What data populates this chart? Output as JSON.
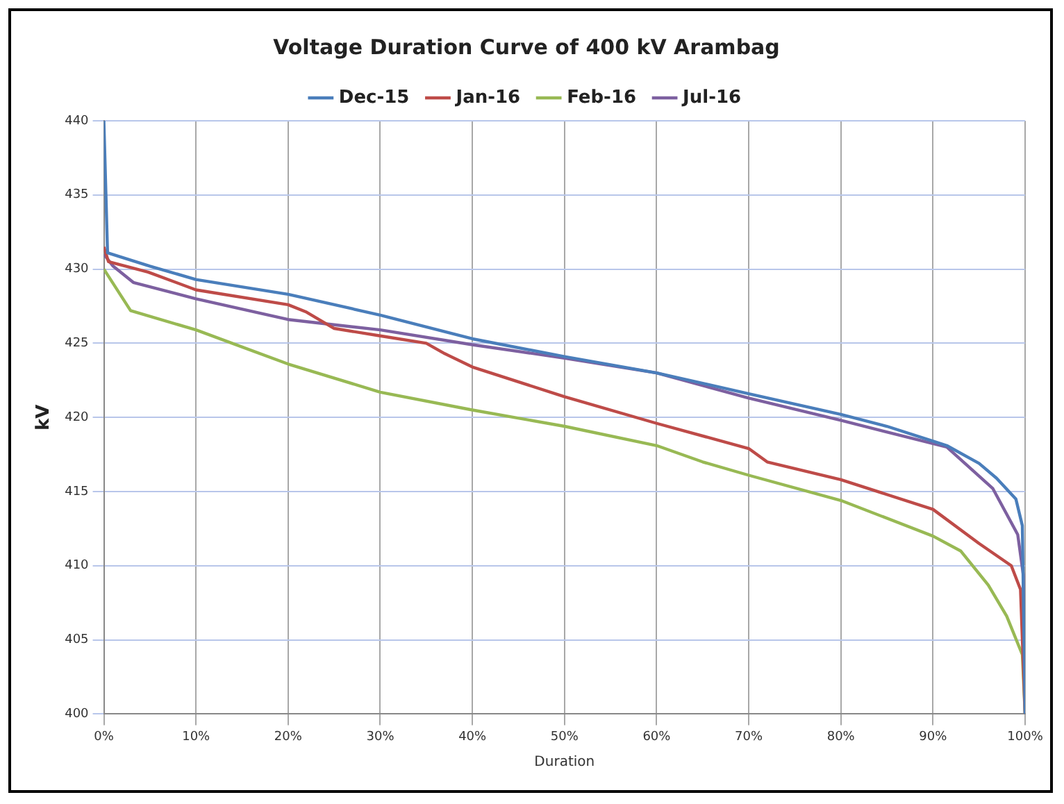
{
  "chart_data": {
    "type": "line",
    "title": "Voltage Duration Curve of 400 kV Arambag",
    "xlabel": "Duration",
    "ylabel": "kV",
    "xlim": [
      0,
      100
    ],
    "xticks": [
      {
        "value": 0,
        "label": "0%"
      },
      {
        "value": 10,
        "label": "10%"
      },
      {
        "value": 20,
        "label": "20%"
      },
      {
        "value": 30,
        "label": "30%"
      },
      {
        "value": 40,
        "label": "40%"
      },
      {
        "value": 50,
        "label": "50%"
      },
      {
        "value": 60,
        "label": "60%"
      },
      {
        "value": 70,
        "label": "70%"
      },
      {
        "value": 80,
        "label": "80%"
      },
      {
        "value": 90,
        "label": "90%"
      },
      {
        "value": 100,
        "label": "100%"
      }
    ],
    "ylim": [
      400,
      440
    ],
    "yticks": [
      400,
      405,
      410,
      415,
      420,
      425,
      430,
      435,
      440
    ],
    "grid": true,
    "legend": "top",
    "marker": "none",
    "line_style": "solid",
    "series": [
      {
        "name": "Dec-15",
        "color": "#4a7ebb",
        "x": [
          0,
          0.4,
          5,
          10,
          20,
          30,
          40,
          50,
          60,
          70,
          80,
          85,
          90,
          91.5,
          95,
          96.9,
          99,
          99.7,
          100
        ],
        "values": [
          440,
          431.1,
          430.2,
          429.3,
          428.3,
          426.9,
          425.3,
          424.1,
          423,
          421.6,
          420.2,
          419.4,
          418.4,
          418.1,
          416.9,
          415.9,
          414.5,
          412.7,
          400
        ]
      },
      {
        "name": "Jan-16",
        "color": "#be4b48",
        "x": [
          0,
          0.5,
          4.8,
          10,
          20,
          22,
          25,
          30,
          35,
          37,
          40,
          50,
          60,
          70,
          72,
          80,
          90,
          95,
          98.5,
          99.5,
          100
        ],
        "values": [
          431.5,
          430.5,
          429.8,
          428.6,
          427.6,
          427.1,
          426,
          425.5,
          425,
          424.3,
          423.4,
          421.4,
          419.6,
          417.9,
          417,
          415.8,
          413.8,
          411.5,
          410,
          408.4,
          400
        ]
      },
      {
        "name": "Feb-16",
        "color": "#98b954",
        "x": [
          0,
          2.9,
          10,
          20,
          30,
          40,
          50,
          60,
          65,
          70,
          80,
          90,
          93,
          96,
          98,
          99.7,
          100
        ],
        "values": [
          430,
          427.2,
          425.9,
          423.6,
          421.7,
          420.5,
          419.4,
          418.1,
          417,
          416.1,
          414.4,
          412,
          411,
          408.7,
          406.6,
          404,
          400
        ]
      },
      {
        "name": "Jul-16",
        "color": "#7d60a0",
        "x": [
          0,
          1,
          3.2,
          10,
          20,
          30,
          40,
          50,
          60,
          70,
          80,
          91.5,
          96.5,
          99.2,
          99.8,
          100
        ],
        "values": [
          431,
          430.2,
          429.1,
          428,
          426.6,
          425.9,
          424.9,
          424,
          423,
          421.3,
          419.8,
          418,
          415.2,
          412.1,
          409.4,
          400
        ]
      }
    ]
  }
}
